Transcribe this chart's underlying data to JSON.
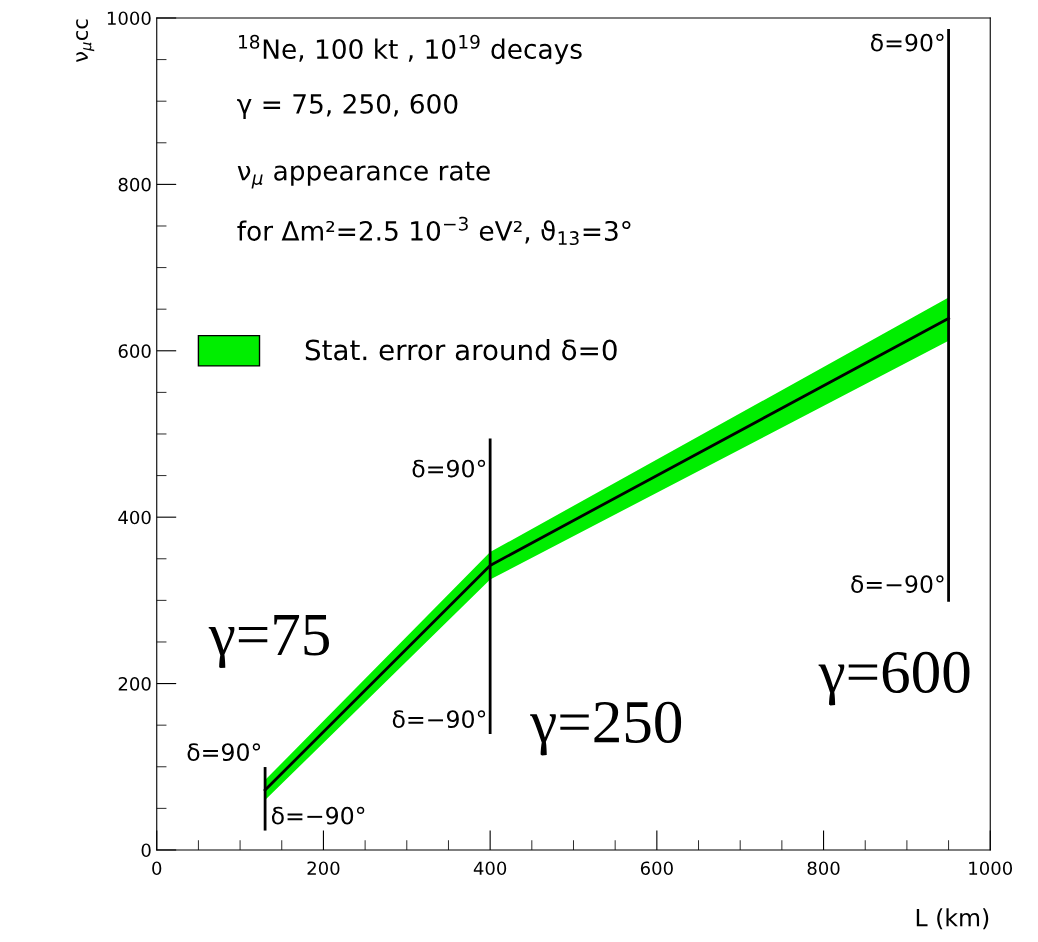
{
  "chart_data": {
    "type": "line",
    "xlabel": "L (km)",
    "ylabel": "ν$_{μ}$cc",
    "xlim": [
      0,
      1000
    ],
    "ylim": [
      0,
      1000
    ],
    "xticks": [
      0,
      200,
      400,
      600,
      800,
      1000
    ],
    "yticks": [
      0,
      200,
      400,
      600,
      800,
      1000
    ],
    "grid": false,
    "legend": "left",
    "marker": "none",
    "line_style": "solid",
    "series": [
      {
        "name": "Stat. error around δ=0",
        "color": "#000000",
        "colors": [
          "#00ee00",
          "#00ee00",
          "#00ee00"
        ],
        "x": [
          130,
          400,
          950
        ],
        "values": [
          72,
          342,
          639
        ],
        "lower": [
          60,
          325,
          612
        ],
        "upper": [
          84,
          358,
          664
        ]
      },
      {
        "color": "#000000",
        "x": [
          130,
          130
        ],
        "values": [
          25,
          98
        ]
      },
      {
        "color": "#000000",
        "x": [
          400,
          400
        ],
        "values": [
          141,
          493
        ]
      },
      {
        "color": "#000000",
        "x": [
          950,
          950
        ],
        "values": [
          300,
          985
        ]
      }
    ],
    "annotations": [
      "$^{18}$Ne, 100 kt , 10$^{19}$ decays",
      "γ = 75, 250, 600",
      "ν$_{μ}$ appearance rate",
      "for Δm²=2.5 10$^{−3}$ eV², ϑ$_{13}$=3°",
      "γ=75",
      "γ=250",
      "γ=600",
      {
        "text": "δ=90°",
        "x": 130,
        "y": 98
      },
      {
        "text": "δ=−90°",
        "x": 130,
        "y": 25
      },
      {
        "text": "δ=90°",
        "x": 400,
        "y": 493
      },
      {
        "text": "δ=−90°",
        "x": 400,
        "y": 141
      },
      {
        "text": "δ=90°",
        "x": 950,
        "y": 985
      },
      {
        "text": "δ=−90°",
        "x": 950,
        "y": 300
      }
    ]
  }
}
